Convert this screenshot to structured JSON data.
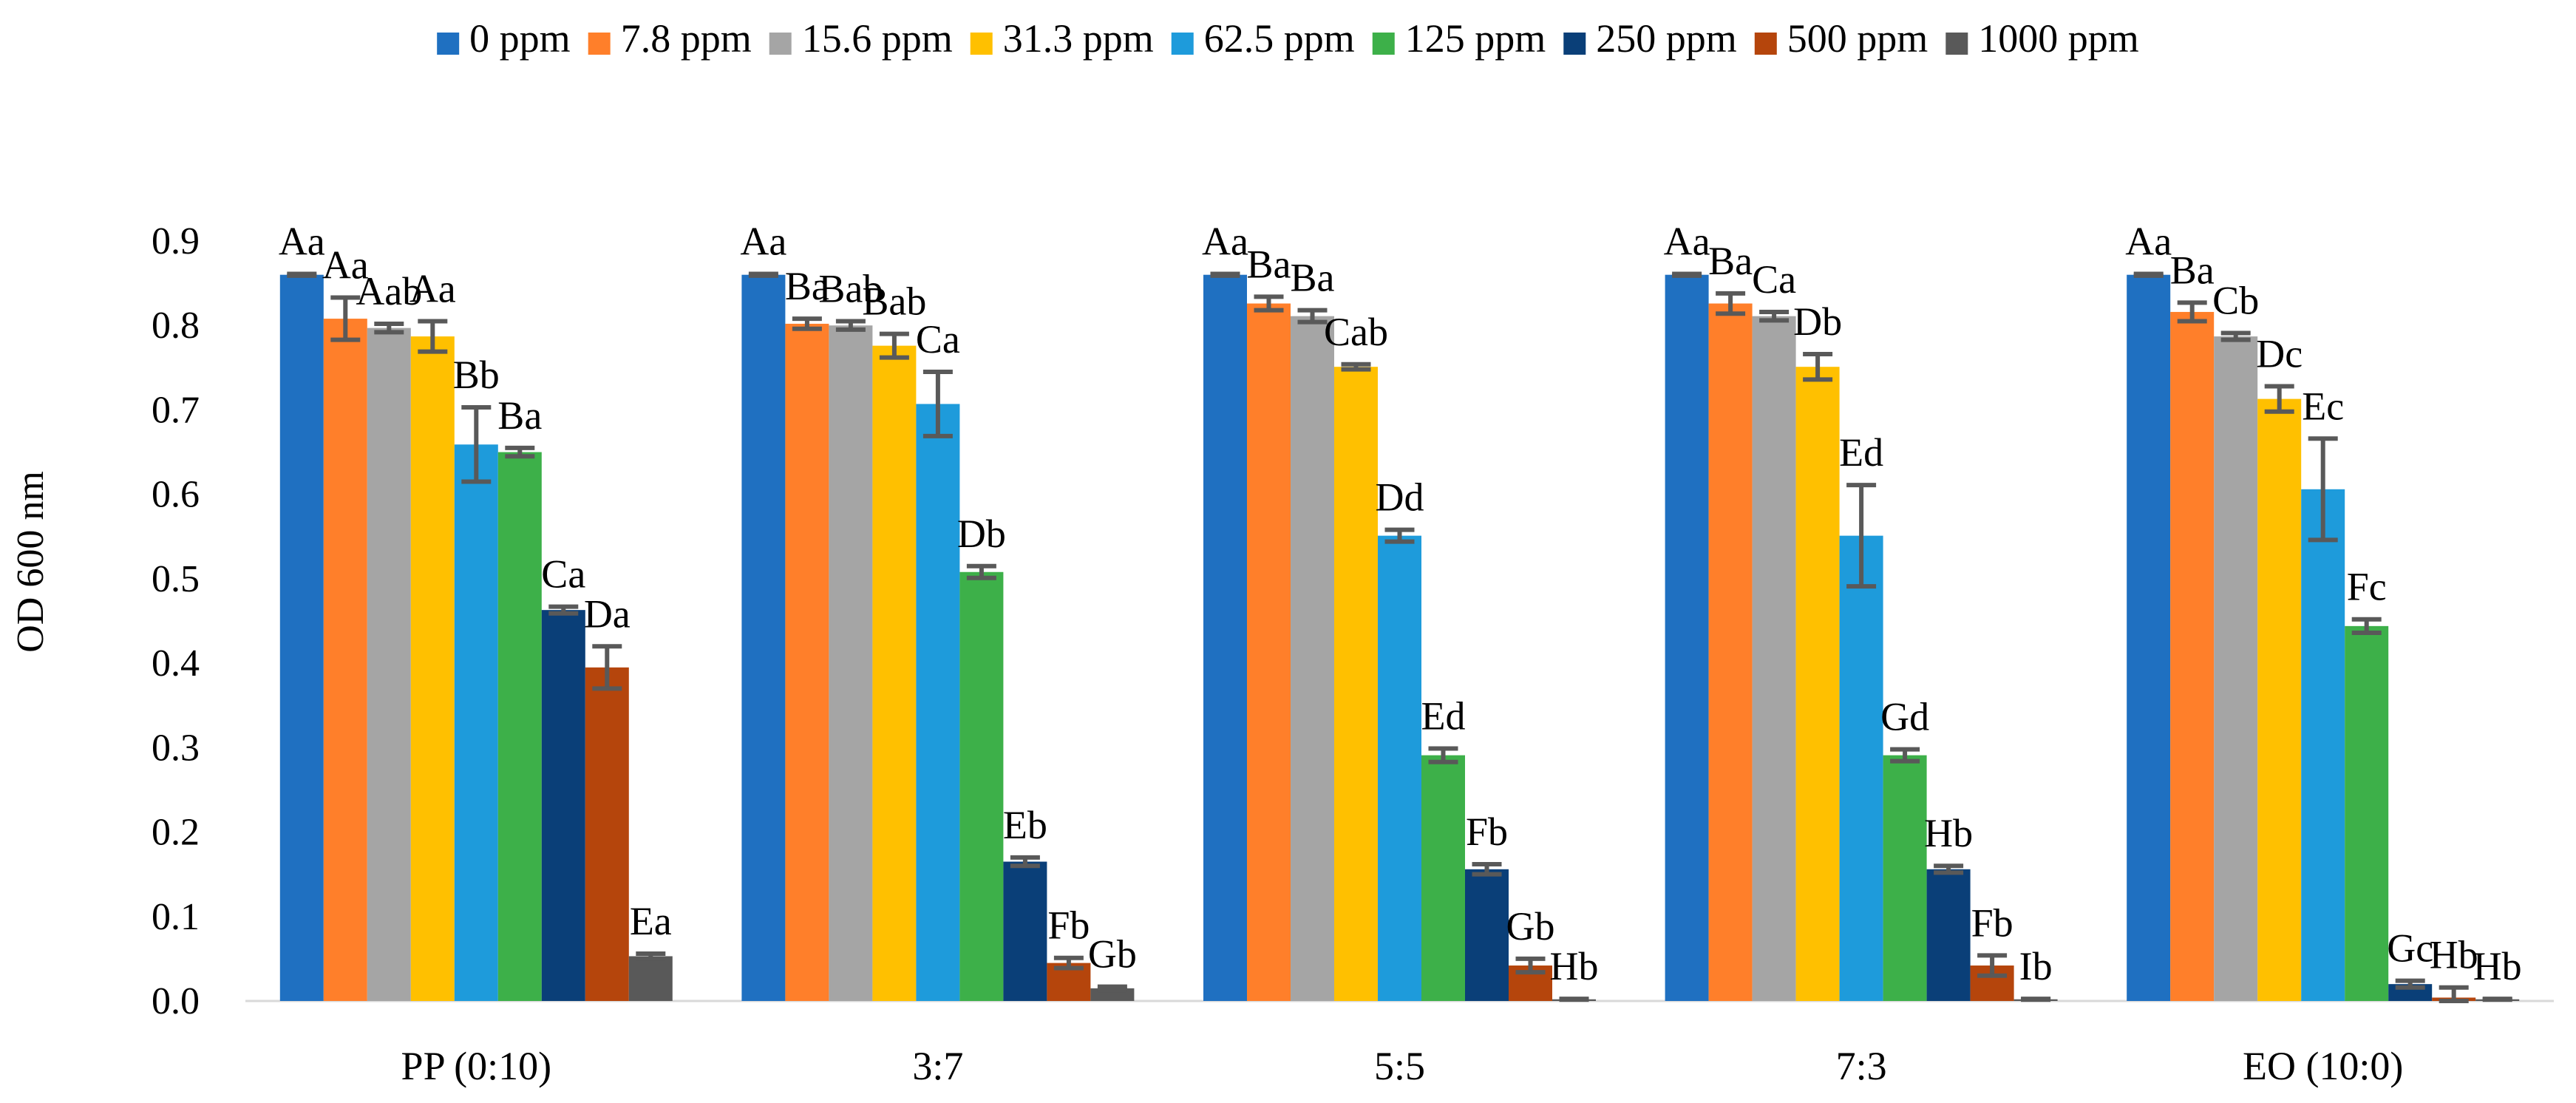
{
  "chart_data": {
    "type": "bar",
    "title": "",
    "xlabel": "",
    "ylabel": "OD 600 nm",
    "ylim": [
      0,
      0.9
    ],
    "yticks": [
      "0.0",
      "0.1",
      "0.2",
      "0.3",
      "0.4",
      "0.5",
      "0.6",
      "0.7",
      "0.8",
      "0.9"
    ],
    "grid": false,
    "legend": "top",
    "categories": [
      "PP (0:10)",
      "3:7",
      "5:5",
      "7:3",
      "EO (10:0)"
    ],
    "series": [
      {
        "name": "0 ppm",
        "color": "#1F70C1",
        "values": [
          0.86,
          0.86,
          0.86,
          0.86,
          0.86
        ],
        "errors": [
          0.001,
          0.001,
          0.001,
          0.001,
          0.001
        ],
        "labels": [
          "Aa",
          "Aa",
          "Aa",
          "Aa",
          "Aa"
        ]
      },
      {
        "name": "7.8 ppm",
        "color": "#FF7F2A",
        "values": [
          0.808,
          0.802,
          0.826,
          0.826,
          0.816
        ],
        "errors": [
          0.025,
          0.006,
          0.008,
          0.012,
          0.011
        ],
        "labels": [
          "Aa",
          "Ba",
          "Ba",
          "Ba",
          "Ba"
        ]
      },
      {
        "name": "15.6 ppm",
        "color": "#A5A5A5",
        "values": [
          0.797,
          0.8,
          0.811,
          0.811,
          0.787
        ],
        "errors": [
          0.005,
          0.005,
          0.007,
          0.005,
          0.004
        ],
        "labels": [
          "Aab",
          "Bab",
          "Ba",
          "Ca",
          "Cb"
        ]
      },
      {
        "name": "31.3 ppm",
        "color": "#FFC000",
        "values": [
          0.787,
          0.776,
          0.751,
          0.751,
          0.713
        ],
        "errors": [
          0.018,
          0.014,
          0.003,
          0.015,
          0.015
        ],
        "labels": [
          "Aa",
          "Bab",
          "Cab",
          "Db",
          "Dc"
        ]
      },
      {
        "name": "62.5 ppm",
        "color": "#1E9BDB",
        "values": [
          0.659,
          0.707,
          0.551,
          0.551,
          0.606
        ],
        "errors": [
          0.044,
          0.038,
          0.007,
          0.06,
          0.06
        ],
        "labels": [
          "Bb",
          "Ca",
          "Dd",
          "Ed",
          "Ec"
        ]
      },
      {
        "name": "125 ppm",
        "color": "#3DB049",
        "values": [
          0.65,
          0.508,
          0.291,
          0.291,
          0.444
        ],
        "errors": [
          0.005,
          0.007,
          0.008,
          0.007,
          0.008
        ],
        "labels": [
          "Ba",
          "Db",
          "Ed",
          "Gd",
          "Fc"
        ]
      },
      {
        "name": "250 ppm",
        "color": "#0A3F78",
        "values": [
          0.463,
          0.165,
          0.156,
          0.156,
          0.02
        ],
        "errors": [
          0.004,
          0.005,
          0.006,
          0.004,
          0.004
        ],
        "labels": [
          "Ca",
          "Eb",
          "Fb",
          "Hb",
          "Gc"
        ]
      },
      {
        "name": "500 ppm",
        "color": "#B5450C",
        "values": [
          0.395,
          0.045,
          0.042,
          0.042,
          0.004
        ],
        "errors": [
          0.025,
          0.006,
          0.008,
          0.012,
          0.012
        ],
        "labels": [
          "Da",
          "Fb",
          "Gb",
          "Fb",
          "Hb"
        ]
      },
      {
        "name": "1000 ppm",
        "color": "#595959",
        "values": [
          0.053,
          0.015,
          0.002,
          0.002,
          0.002
        ],
        "errors": [
          0.003,
          0.002,
          0.0005,
          0.0005,
          0.0005
        ],
        "labels": [
          "Ea",
          "Gb",
          "Hb",
          "Ib",
          "Hb"
        ]
      }
    ]
  }
}
